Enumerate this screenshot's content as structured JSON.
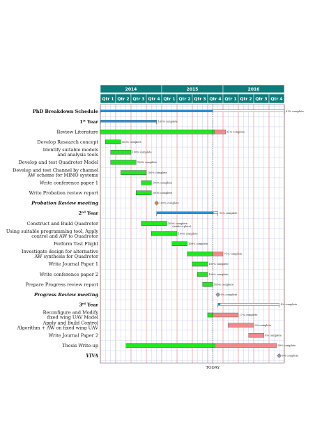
{
  "colors": {
    "header_bg": "#0e7c7b",
    "header_text": "#ffffff",
    "done": "#22e622",
    "remaining": "#f08a8a",
    "summary": "#2a8fd4",
    "milestone": "#d9843a",
    "grid_major": "#e07b7b",
    "grid_minor": "#b8b8ee",
    "today": "#333333"
  },
  "chart_data": {
    "type": "gantt",
    "years": [
      "2014",
      "2015",
      "2016"
    ],
    "quarters": [
      "Qtr 1",
      "Qtr 2",
      "Qtr 3",
      "Qtr 4",
      "Qtr 1",
      "Qtr 2",
      "Qtr 3",
      "Qtr 4",
      "Qtr 1",
      "Qtr 2",
      "Qtr 3",
      "Qtr 4"
    ],
    "today_label": "TODAY",
    "today_month": 22,
    "tasks": [
      {
        "label": "PhD Breakdown Schedule",
        "kind": "summary",
        "style": "bold",
        "start": 0,
        "end": 36,
        "pct": 61,
        "pct_label": "61% complete"
      },
      {
        "label": "1st Year",
        "kind": "summary",
        "style": "bold",
        "start": 0,
        "end": 11,
        "pct": 100,
        "pct_label": "100% complete"
      },
      {
        "label": "Review Literature",
        "kind": "task",
        "style": "normal",
        "start": 0,
        "end": 24.5,
        "pct": 91,
        "pct_label": "91% complete"
      },
      {
        "label": "Develop Research concept",
        "kind": "task",
        "style": "normal",
        "start": 1,
        "end": 4,
        "pct": 100,
        "pct_label": "100% complete"
      },
      {
        "label": "Identify suitable models and analysis tools",
        "kind": "task",
        "style": "normal",
        "start": 2,
        "end": 6,
        "pct": 100,
        "pct_label": "100% complete"
      },
      {
        "label": "Develop and test Quadrotor Model",
        "kind": "task",
        "style": "normal",
        "start": 2,
        "end": 7,
        "pct": 100,
        "pct_label": "100% complete"
      },
      {
        "label": "Develop and test Channel by channel AW scheme for MIMO systems",
        "kind": "task",
        "style": "normal",
        "start": 4,
        "end": 9,
        "pct": 100,
        "pct_label": "100% complete"
      },
      {
        "label": "Write conference paper 1",
        "kind": "task",
        "style": "normal",
        "start": 8,
        "end": 10,
        "pct": 100,
        "pct_label": "100% complete"
      },
      {
        "label": "Write Probation review report",
        "kind": "task",
        "style": "normal",
        "start": 7,
        "end": 10,
        "pct": 100,
        "pct_label": "100% complete"
      },
      {
        "label": "Probation Review meeting",
        "kind": "milestone",
        "style": "italic",
        "start": 11,
        "end": 11,
        "pct": 100,
        "pct_label": "100% complete"
      },
      {
        "label": "2nd Year",
        "kind": "summary",
        "style": "bold",
        "start": 11,
        "end": 23,
        "pct": 93,
        "pct_label": "93% complete"
      },
      {
        "label": "Construct and Build Quadrotor",
        "kind": "task",
        "style": "normal",
        "start": 8,
        "end": 13,
        "pct": 100,
        "pct_label": "100% complete",
        "note": "(made-to-place)"
      },
      {
        "label": "Using suitable programming tool, Apply control and AW to Quadrotor",
        "kind": "task",
        "style": "normal",
        "start": 10,
        "end": 15,
        "pct": 100,
        "pct_label": "100% complete"
      },
      {
        "label": "Perform Test Flight",
        "kind": "task",
        "style": "normal",
        "start": 14,
        "end": 17,
        "pct": 100,
        "pct_label": "100% complete"
      },
      {
        "label": "Investigate design for alternative AW synthesis for Quadrotor",
        "kind": "task",
        "style": "normal",
        "start": 17,
        "end": 24,
        "pct": 71,
        "pct_label": "71% complete"
      },
      {
        "label": "Write Journal Paper 1",
        "kind": "task",
        "style": "normal",
        "start": 18,
        "end": 21,
        "pct": 100,
        "pct_label": "100% complete"
      },
      {
        "label": "Write conference paper 2",
        "kind": "task",
        "style": "normal",
        "start": 19,
        "end": 21,
        "pct": 100,
        "pct_label": "100% complete"
      },
      {
        "label": "Prepare Progress review report",
        "kind": "task",
        "style": "normal",
        "start": 20,
        "end": 22,
        "pct": 100,
        "pct_label": "100% complete"
      },
      {
        "label": "Progress Review meeting",
        "kind": "milestone",
        "style": "italic",
        "start": 23,
        "end": 23,
        "pct": 0,
        "pct_label": "0% complete"
      },
      {
        "label": "3rd Year",
        "kind": "summary",
        "style": "bold",
        "start": 23,
        "end": 35,
        "pct": 4,
        "pct_label": "4% complete"
      },
      {
        "label": "Reconfigure and Modify fixed wing UAV Model",
        "kind": "task",
        "style": "normal",
        "start": 21,
        "end": 27,
        "pct": 17,
        "pct_label": "17% complete"
      },
      {
        "label": "Apply and Build Control Algorithm + AW on fixed wing UAV",
        "kind": "task",
        "style": "normal",
        "start": 25,
        "end": 30,
        "pct": 0,
        "pct_label": "0% complete"
      },
      {
        "label": "Write Journal Paper 2",
        "kind": "task",
        "style": "normal",
        "start": 29,
        "end": 32,
        "pct": 0,
        "pct_label": "0% complete"
      },
      {
        "label": "Thesis Write-up",
        "kind": "task",
        "style": "normal",
        "start": 5,
        "end": 34.5,
        "pct": 59,
        "pct_label": "59% complete"
      },
      {
        "label": "VIVA",
        "kind": "milestone",
        "style": "italic",
        "start": 35,
        "end": 35,
        "pct": 0,
        "pct_label": "0% complete"
      }
    ]
  }
}
